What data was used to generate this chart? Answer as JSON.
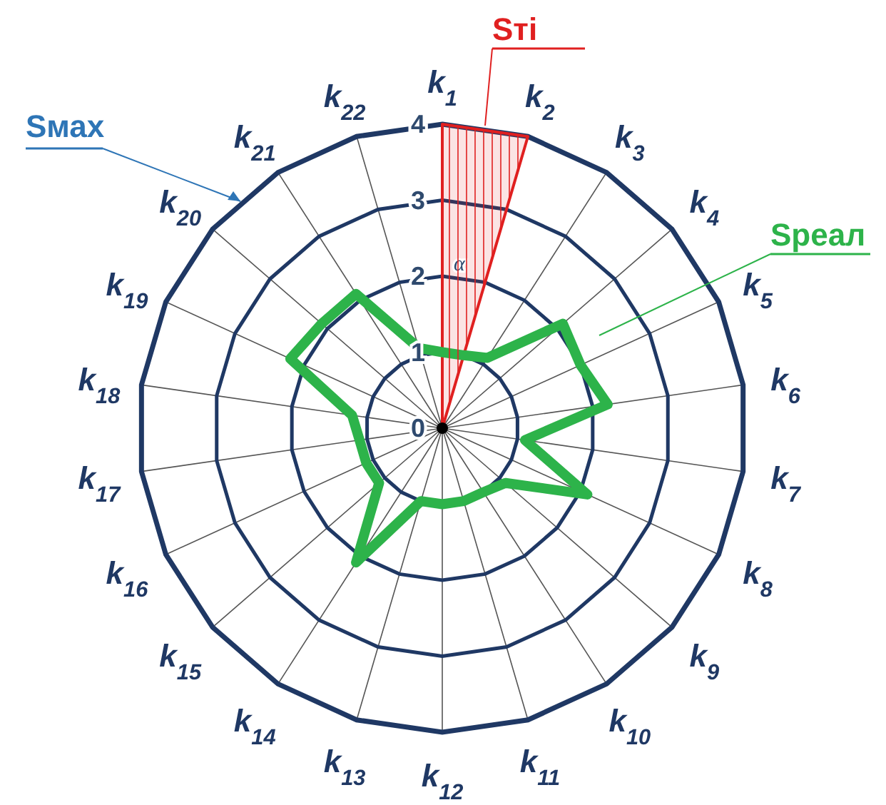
{
  "chart_data": {
    "type": "radar",
    "categories": [
      "k$_{1}$",
      "k$_{2}$",
      "k$_{3}$",
      "k$_{4}$",
      "k$_{5}$",
      "k$_{6}$",
      "k$_{7}$",
      "k$_{8}$",
      "k$_{9}$",
      "k$_{10}$",
      "k$_{11}$",
      "k$_{12}$",
      "k$_{13}$",
      "k$_{14}$",
      "k$_{15}$",
      "k$_{16}$",
      "k$_{17}$",
      "k$_{18}$",
      "k$_{19}$",
      "k$_{20}$",
      "k$_{21}$",
      "k$_{22}$"
    ],
    "series": [
      {
        "name": "Sтi",
        "color": "#e02020",
        "values": [
          4,
          4,
          0,
          0,
          0,
          0,
          0,
          0,
          0,
          0,
          0,
          0,
          0,
          0,
          0,
          0,
          0,
          0,
          0,
          0,
          0,
          0
        ]
      },
      {
        "name": "Sреал",
        "color": "#2db34a",
        "values": [
          1,
          1,
          1.1,
          2.1,
          2,
          2.2,
          1.1,
          2.1,
          1.1,
          1,
          1,
          1,
          1,
          2.1,
          1.1,
          1.1,
          1.1,
          1.2,
          2.2,
          2.1,
          2.1,
          1.1
        ]
      }
    ],
    "ylim": [
      0,
      4
    ],
    "yticks": [
      0,
      1,
      2,
      3,
      4
    ],
    "grid": true,
    "marker": "none",
    "annotations": [
      "α",
      "Sмах"
    ]
  }
}
